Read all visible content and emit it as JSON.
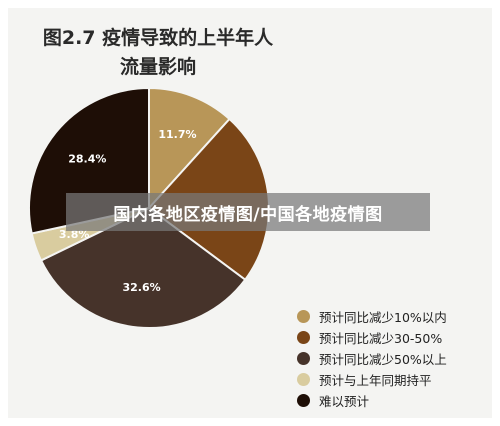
{
  "header": {
    "title_line1": "图2.7 疫情导致的上半年人",
    "title_line2": "流量影响"
  },
  "overlay_text": "国内各地区疫情图/中国各地疫情图",
  "chart_data": {
    "type": "pie",
    "title": "图2.7 疫情导致的上半年人流量影响",
    "slices": [
      {
        "label": "预计同比减少10%以内",
        "value": 11.7,
        "value_label": "11.7%",
        "color": "#b89658"
      },
      {
        "label": "预计同比减少30-50%",
        "value": 23.5,
        "value_label": "",
        "color": "#7a4517"
      },
      {
        "label": "预计同比减少50%以上",
        "value": 32.6,
        "value_label": "32.6%",
        "color": "#46332a"
      },
      {
        "label": "预计与上年同期持平",
        "value": 3.8,
        "value_label": "3.8%",
        "color": "#d9cc9f"
      },
      {
        "label": "难以预计",
        "value": 28.4,
        "value_label": "28.4%",
        "color": "#1e0e06"
      }
    ],
    "legend_position": "bottom-right"
  }
}
